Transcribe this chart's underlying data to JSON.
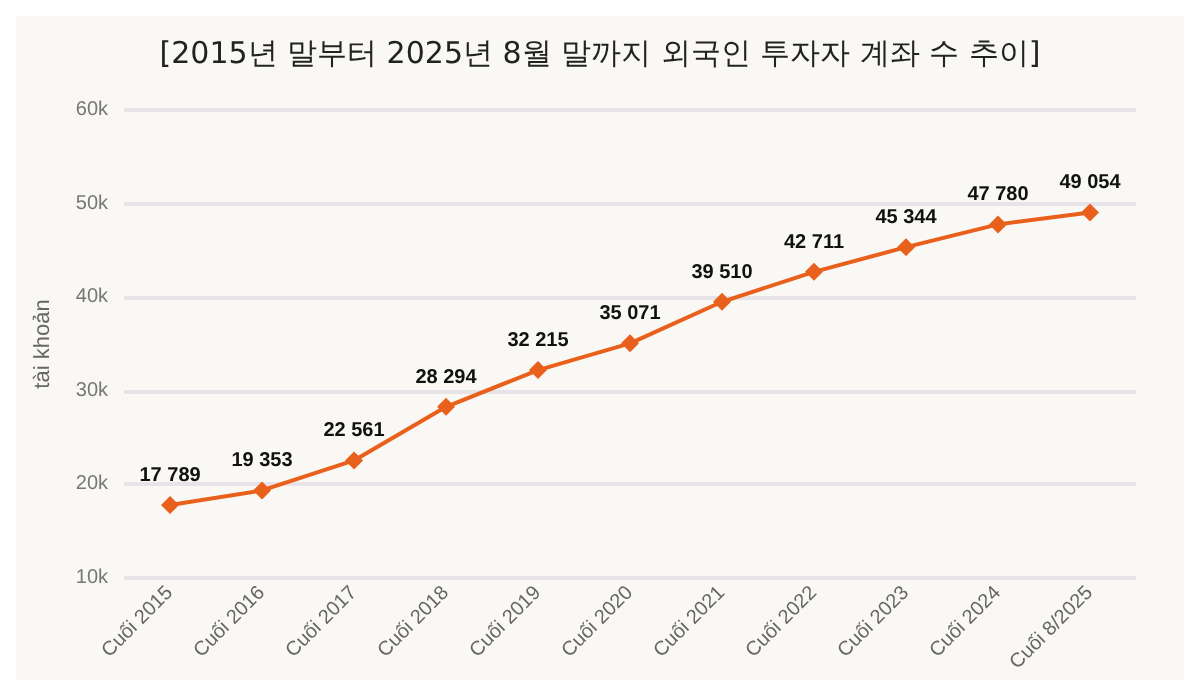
{
  "chart_data": {
    "type": "line",
    "title": "[2015년 말부터 2025년 8월 말까지 외국인 투자자 계좌 수 추이]",
    "ylabel": "tài khoản",
    "categories": [
      "Cuối 2015",
      "Cuối 2016",
      "Cuối 2017",
      "Cuối 2018",
      "Cuối 2019",
      "Cuối 2020",
      "Cuối 2021",
      "Cuối 2022",
      "Cuối 2023",
      "Cuối 2024",
      "Cuối 8/2025"
    ],
    "series": [
      {
        "color": "#e8601c",
        "values": [
          17789,
          19353,
          22561,
          28294,
          32215,
          35071,
          39510,
          42711,
          45344,
          47780,
          49054
        ],
        "value_labels": [
          "17 789",
          "19 353",
          "22 561",
          "28 294",
          "32 215",
          "35 071",
          "39 510",
          "42 711",
          "45 344",
          "47 780",
          "49 054"
        ]
      }
    ],
    "ylim": [
      10000,
      60000
    ],
    "yticks": [
      {
        "value": 10000,
        "label": "10k"
      },
      {
        "value": 20000,
        "label": "20k"
      },
      {
        "value": 30000,
        "label": "30k"
      },
      {
        "value": 40000,
        "label": "40k"
      },
      {
        "value": 50000,
        "label": "50k"
      },
      {
        "value": 60000,
        "label": "60k"
      }
    ],
    "grid": "y",
    "marker": "diamond",
    "line_style": "solid"
  }
}
